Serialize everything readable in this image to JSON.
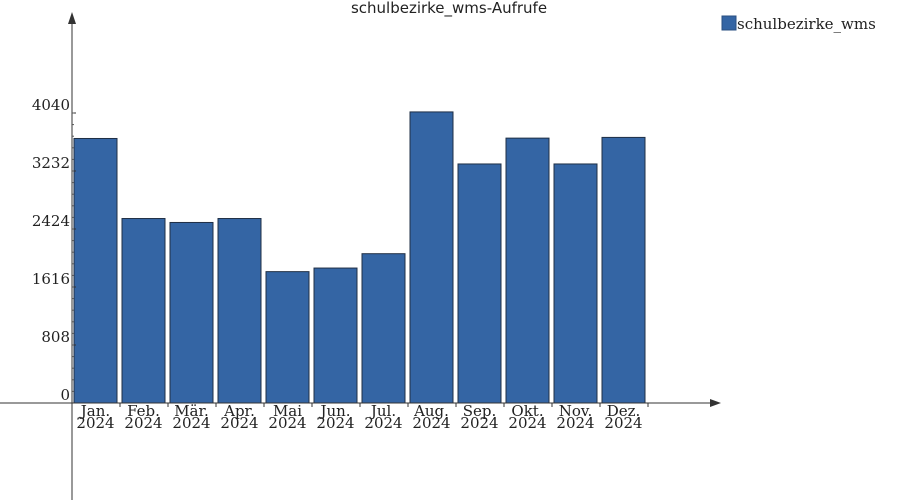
{
  "chart_data": {
    "type": "bar",
    "title": "schulbezirke_wms-Aufrufe",
    "xlabel": "",
    "ylabel": "",
    "categories": [
      [
        "Jan.",
        "2024"
      ],
      [
        "Feb.",
        "2024"
      ],
      [
        "Mär.",
        "2024"
      ],
      [
        "Apr.",
        "2024"
      ],
      [
        "Mai",
        "2024"
      ],
      [
        "Jun.",
        "2024"
      ],
      [
        "Jul.",
        "2024"
      ],
      [
        "Aug.",
        "2024"
      ],
      [
        "Sep.",
        "2024"
      ],
      [
        "Okt.",
        "2024"
      ],
      [
        "Nov.",
        "2024"
      ],
      [
        "Dez.",
        "2024"
      ]
    ],
    "series": [
      {
        "name": "schulbezirke_wms",
        "color": "#3465a4",
        "values": [
          3685,
          2570,
          2515,
          2570,
          1830,
          1880,
          2080,
          4055,
          3330,
          3690,
          3330,
          3700
        ]
      }
    ],
    "yticks": [
      0,
      808,
      1616,
      2424,
      3232,
      4040
    ],
    "ylim": [
      0,
      4040
    ],
    "grid": false,
    "legend_position": "top-right"
  }
}
